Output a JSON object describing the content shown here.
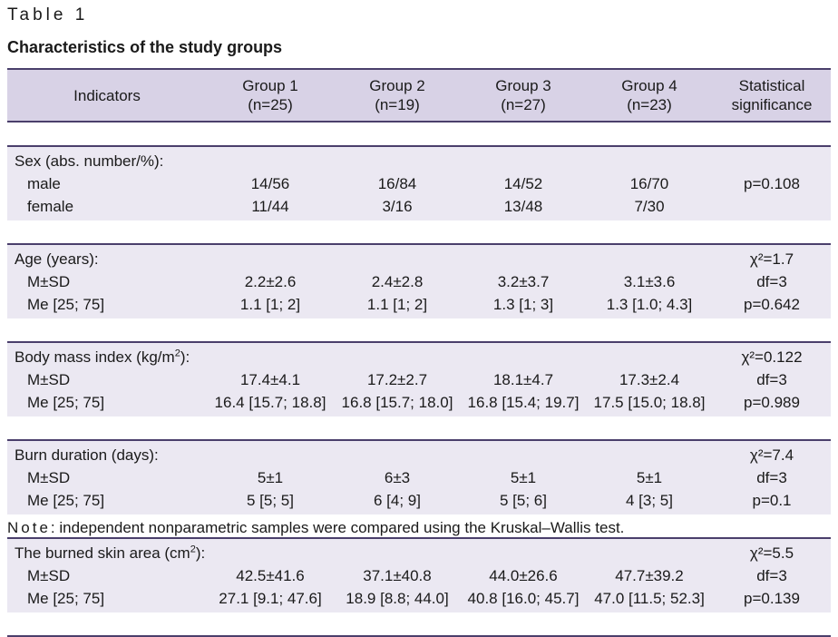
{
  "table_label": "Table 1",
  "title": "Characteristics of the study groups",
  "columns": [
    {
      "line1": "Indicators",
      "line2": ""
    },
    {
      "line1": "Group 1",
      "line2": "(n=25)"
    },
    {
      "line1": "Group 2",
      "line2": "(n=19)"
    },
    {
      "line1": "Group 3",
      "line2": "(n=27)"
    },
    {
      "line1": "Group 4",
      "line2": "(n=23)"
    },
    {
      "line1": "Statistical",
      "line2": "significance"
    }
  ],
  "sections": [
    {
      "label": "Sex (abs. number/%):",
      "label_sup": "",
      "label_after": "",
      "stat": "",
      "rows": [
        {
          "label": "male",
          "values": [
            "14/56",
            "16/84",
            "14/52",
            "16/70"
          ],
          "stat": "p=0.108"
        },
        {
          "label": "female",
          "values": [
            "11/44",
            "3/16",
            "13/48",
            "7/30"
          ],
          "stat": ""
        }
      ]
    },
    {
      "label": "Age (years):",
      "label_sup": "",
      "label_after": "",
      "stat": "χ²=1.7",
      "rows": [
        {
          "label": "M±SD",
          "values": [
            "2.2±2.6",
            "2.4±2.8",
            "3.2±3.7",
            "3.1±3.6"
          ],
          "stat": "df=3"
        },
        {
          "label": "Me [25; 75]",
          "values": [
            "1.1 [1; 2]",
            "1.1 [1; 2]",
            "1.3 [1; 3]",
            "1.3 [1.0; 4.3]"
          ],
          "stat": "p=0.642"
        }
      ]
    },
    {
      "label": "Body mass index (kg/m",
      "label_sup": "2",
      "label_after": "):",
      "stat": "χ²=0.122",
      "rows": [
        {
          "label": "M±SD",
          "values": [
            "17.4±4.1",
            "17.2±2.7",
            "18.1±4.7",
            "17.3±2.4"
          ],
          "stat": "df=3"
        },
        {
          "label": "Me [25; 75]",
          "values": [
            "16.4 [15.7; 18.8]",
            "16.8 [15.7; 18.0]",
            "16.8 [15.4; 19.7]",
            "17.5 [15.0; 18.8]"
          ],
          "stat": "p=0.989"
        }
      ]
    },
    {
      "label": "Burn duration (days):",
      "label_sup": "",
      "label_after": "",
      "stat": "χ²=7.4",
      "rows": [
        {
          "label": "M±SD",
          "values": [
            "5±1",
            "6±3",
            "5±1",
            "5±1"
          ],
          "stat": "df=3"
        },
        {
          "label": "Me [25; 75]",
          "values": [
            "5 [5; 5]",
            "6 [4; 9]",
            "5 [5; 6]",
            "4 [3; 5]"
          ],
          "stat": "p=0.1"
        }
      ]
    },
    {
      "label": "The burned skin area (cm",
      "label_sup": "2",
      "label_after": "):",
      "stat": "χ²=5.5",
      "rows": [
        {
          "label": "M±SD",
          "values": [
            "42.5±41.6",
            "37.1±40.8",
            "44.0±26.6",
            "47.7±39.2"
          ],
          "stat": "df=3"
        },
        {
          "label": "Me [25; 75]",
          "values": [
            "27.1 [9.1; 47.6]",
            "18.9 [8.8; 44.0]",
            "40.8 [16.0; 45.7]",
            "47.0 [11.5; 52.3]"
          ],
          "stat": "p=0.139"
        }
      ]
    }
  ],
  "note_prefix": "Note",
  "note_text": ": independent nonparametric samples were compared using the Kruskal–Wallis test."
}
